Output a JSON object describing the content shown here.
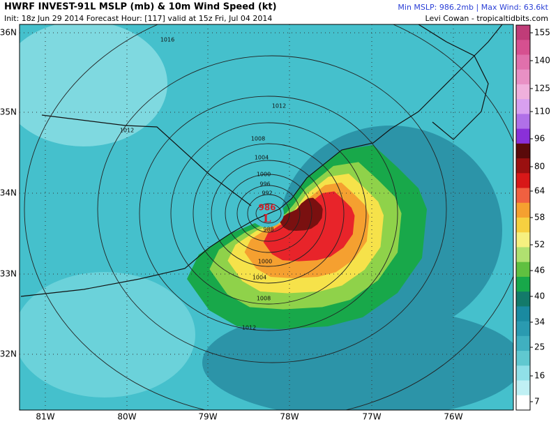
{
  "header": {
    "title": "HWRF INVEST-91L MSLP (mb) & 10m Wind Speed (kt)",
    "subtitle": "Init: 18z Jun 29 2014 Forecast Hour: [117] valid at 15z Fri, Jul 04 2014",
    "stats": "Min MSLP: 986.2mb | Max Wind: 63.6kt",
    "credit": "Levi Cowan - tropicaltidbits.com"
  },
  "map": {
    "lat_labels": [
      "36N",
      "35N",
      "34N",
      "33N",
      "32N"
    ],
    "lon_labels": [
      "81W",
      "80W",
      "79W",
      "78W",
      "77W",
      "76W"
    ],
    "contour_labels": [
      "1016",
      "1012",
      "1012",
      "1008",
      "1004",
      "1000",
      "996",
      "992",
      "988",
      "1000",
      "1004",
      "1008",
      "1012"
    ],
    "center": {
      "pressure": "986",
      "symbol": "L"
    }
  },
  "colorbar": {
    "labels": [
      "155",
      "140",
      "125",
      "110",
      "96",
      "80",
      "64",
      "58",
      "52",
      "46",
      "40",
      "34",
      "25",
      "16",
      "7"
    ]
  }
}
